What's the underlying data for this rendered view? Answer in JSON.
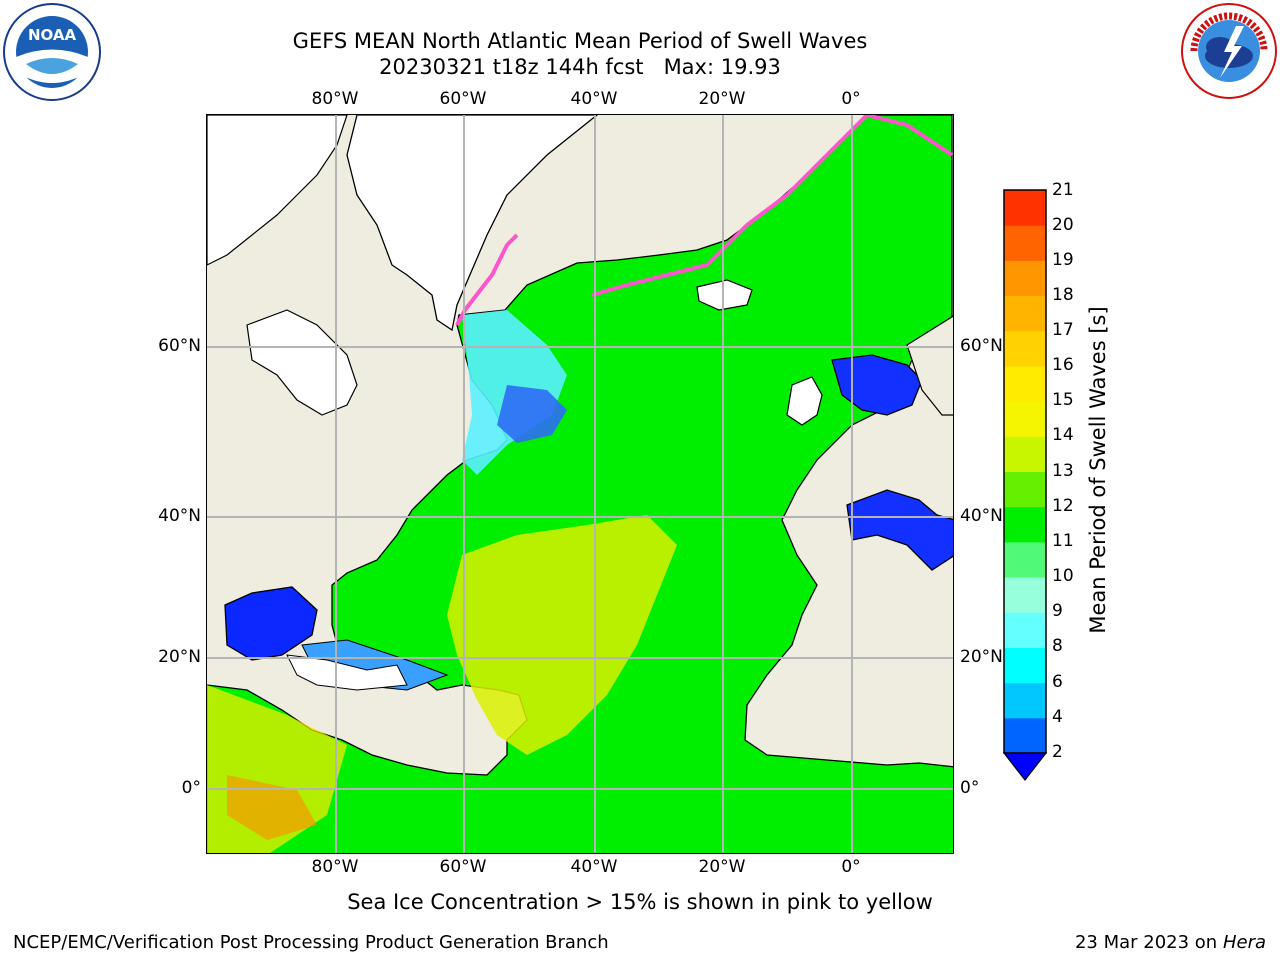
{
  "title": {
    "line1": "GEFS MEAN North Atlantic Mean Period of Swell Waves",
    "line2": "20230321 t18z 144h fcst   Max: 19.93"
  },
  "logos": {
    "left": "NOAA",
    "left_ring": "NATIONAL OCEANIC AND ATMOSPHERIC ADMINISTRATION · U.S. DEPARTMENT OF COMMERCE",
    "right_ring": "NATIONAL WEATHER SERVICE"
  },
  "map": {
    "lon_labels": [
      "80°W",
      "60°W",
      "40°W",
      "20°W",
      "0°"
    ],
    "lat_labels": [
      "60°N",
      "40°N",
      "20°N",
      "0°"
    ],
    "colors": {
      "land": "#efede0",
      "ice_no_data": "#ffffff",
      "gridline": "#b4b4b4",
      "coast": "#000000",
      "ice_edge": "#ff55cc"
    }
  },
  "colorbar": {
    "label": "Mean Period of Swell Waves [s]",
    "ticks": [
      "21",
      "20",
      "19",
      "18",
      "17",
      "16",
      "15",
      "14",
      "13",
      "12",
      "11",
      "10",
      "9",
      "8",
      "6",
      "4",
      "2"
    ],
    "levels": [
      2,
      4,
      6,
      8,
      9,
      10,
      11,
      12,
      13,
      14,
      15,
      16,
      17,
      18,
      19,
      20,
      21
    ],
    "colors": [
      "#0064ff",
      "#00c8ff",
      "#00ffff",
      "#64ffff",
      "#96ffdc",
      "#50fa78",
      "#00ee00",
      "#64f000",
      "#c8f500",
      "#f5f500",
      "#ffeb00",
      "#ffd200",
      "#ffb400",
      "#ff9600",
      "#ff6400",
      "#ff3200",
      "#ff0000"
    ],
    "under_color": "#0000ff"
  },
  "notes": {
    "ice": "Sea Ice Concentration > 15% is shown in pink to yellow"
  },
  "footer": {
    "left": "NCEP/EMC/Verification Post Processing Product Generation Branch",
    "date": "23 Mar 2023 on",
    "machine": "Hera"
  }
}
